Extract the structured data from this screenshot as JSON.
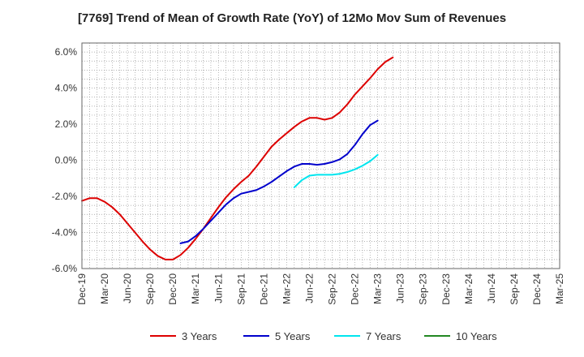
{
  "chart_data": {
    "type": "line",
    "title": "[7769]  Trend of Mean of Growth Rate (YoY) of 12Mo Mov Sum of Revenues",
    "xlabel": "",
    "ylabel": "",
    "ylim": [
      -6.0,
      6.5
    ],
    "yticks": [
      -6.0,
      -4.0,
      -2.0,
      0.0,
      2.0,
      4.0,
      6.0
    ],
    "ytick_labels": [
      "-6.0%",
      "-4.0%",
      "-2.0%",
      "0.0%",
      "2.0%",
      "4.0%",
      "6.0%"
    ],
    "x_categories": [
      "Dec-19",
      "Mar-20",
      "Jun-20",
      "Sep-20",
      "Dec-20",
      "Mar-21",
      "Jun-21",
      "Sep-21",
      "Dec-21",
      "Mar-22",
      "Jun-22",
      "Sep-22",
      "Dec-22",
      "Mar-23",
      "Jun-23",
      "Sep-23",
      "Dec-23",
      "Mar-24",
      "Jun-24",
      "Sep-24",
      "Dec-24",
      "Mar-25"
    ],
    "grid": true,
    "legend_position": "bottom",
    "series": [
      {
        "name": "3 Years",
        "color": "#dd0000",
        "start_index": 0,
        "values": [
          -2.25,
          -2.1,
          -2.1,
          -2.3,
          -2.6,
          -3.0,
          -3.5,
          -4.0,
          -4.5,
          -4.95,
          -5.3,
          -5.5,
          -5.5,
          -5.25,
          -4.85,
          -4.35,
          -3.8,
          -3.2,
          -2.6,
          -2.05,
          -1.6,
          -1.2,
          -0.85,
          -0.35,
          0.2,
          0.75,
          1.15,
          1.5,
          1.85,
          2.15,
          2.35,
          2.35,
          2.25,
          2.35,
          2.65,
          3.1,
          3.65,
          4.1,
          4.55,
          5.05,
          5.45,
          5.7
        ]
      },
      {
        "name": "5 Years",
        "color": "#0000cc",
        "start_index": 13,
        "values": [
          -4.6,
          -4.5,
          -4.2,
          -3.8,
          -3.35,
          -2.9,
          -2.45,
          -2.1,
          -1.85,
          -1.75,
          -1.65,
          -1.45,
          -1.2,
          -0.9,
          -0.6,
          -0.35,
          -0.2,
          -0.2,
          -0.25,
          -0.2,
          -0.1,
          0.05,
          0.35,
          0.85,
          1.45,
          1.95,
          2.2
        ]
      },
      {
        "name": "7 Years",
        "color": "#00e5ee",
        "start_index": 28,
        "values": [
          -1.5,
          -1.1,
          -0.85,
          -0.8,
          -0.8,
          -0.8,
          -0.75,
          -0.65,
          -0.5,
          -0.3,
          -0.05,
          0.3
        ]
      },
      {
        "name": "10 Years",
        "color": "#228822",
        "start_index": 0,
        "values": []
      }
    ]
  }
}
